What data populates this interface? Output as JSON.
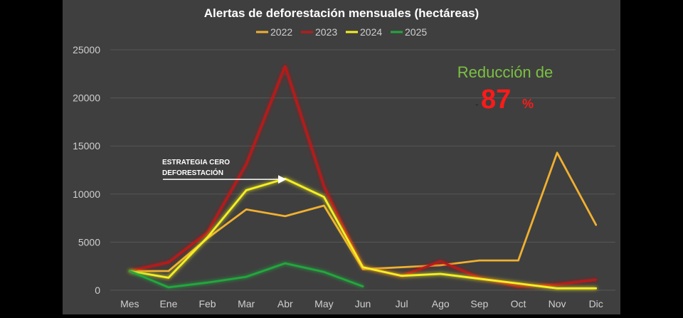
{
  "chart_data": {
    "type": "line",
    "title": "Alertas de deforestación mensuales (hectáreas)",
    "categories": [
      "Mes",
      "Ene",
      "Feb",
      "Mar",
      "Abr",
      "May",
      "Jun",
      "Jul",
      "Ago",
      "Sep",
      "Oct",
      "Nov",
      "Dic"
    ],
    "ylim": [
      0,
      25000
    ],
    "yticks": [
      0,
      5000,
      10000,
      15000,
      20000,
      25000
    ],
    "ytick_labels": [
      "0",
      "5000",
      "10000",
      "15000",
      "20000",
      "25000"
    ],
    "grid": true,
    "legend_position": "top",
    "series": [
      {
        "name": "2022",
        "color": "#f0b030",
        "glow": false,
        "values": [
          2000,
          2000,
          5400,
          8400,
          7700,
          8800,
          2200,
          2400,
          2600,
          3100,
          3100,
          14300,
          6800
        ]
      },
      {
        "name": "2023",
        "color": "#c01818",
        "glow": true,
        "values": [
          2000,
          2900,
          6000,
          13100,
          23300,
          10800,
          2400,
          1500,
          3000,
          1300,
          400,
          600,
          1100
        ]
      },
      {
        "name": "2024",
        "color": "#f5f020",
        "glow": true,
        "values": [
          2000,
          1300,
          5500,
          10400,
          11600,
          9700,
          2400,
          1500,
          1700,
          1200,
          700,
          200,
          200
        ]
      },
      {
        "name": "2025",
        "color": "#22a83c",
        "glow": true,
        "values": [
          2000,
          300,
          800,
          1400,
          2800,
          1900,
          400,
          null,
          null,
          null,
          null,
          null,
          null
        ]
      }
    ],
    "annotations": {
      "strategy_line1": "ESTRATEGIA CERO",
      "strategy_line2": "DEFORESTACIÓN",
      "reduction_label": "Reducción de",
      "reduction_sign": "-",
      "reduction_value": "87",
      "reduction_unit": "%",
      "arrow_target_category": "Abr",
      "arrow_target_value": 11600,
      "arrow_start_category": "Ene"
    }
  },
  "colors": {
    "panel": "#3f3f3f",
    "grid": "#575757",
    "tick_text": "#cfcfcf",
    "title_text": "#ffffff",
    "reduction_label": "#7bc142",
    "reduction_value": "#ff1a1a"
  }
}
